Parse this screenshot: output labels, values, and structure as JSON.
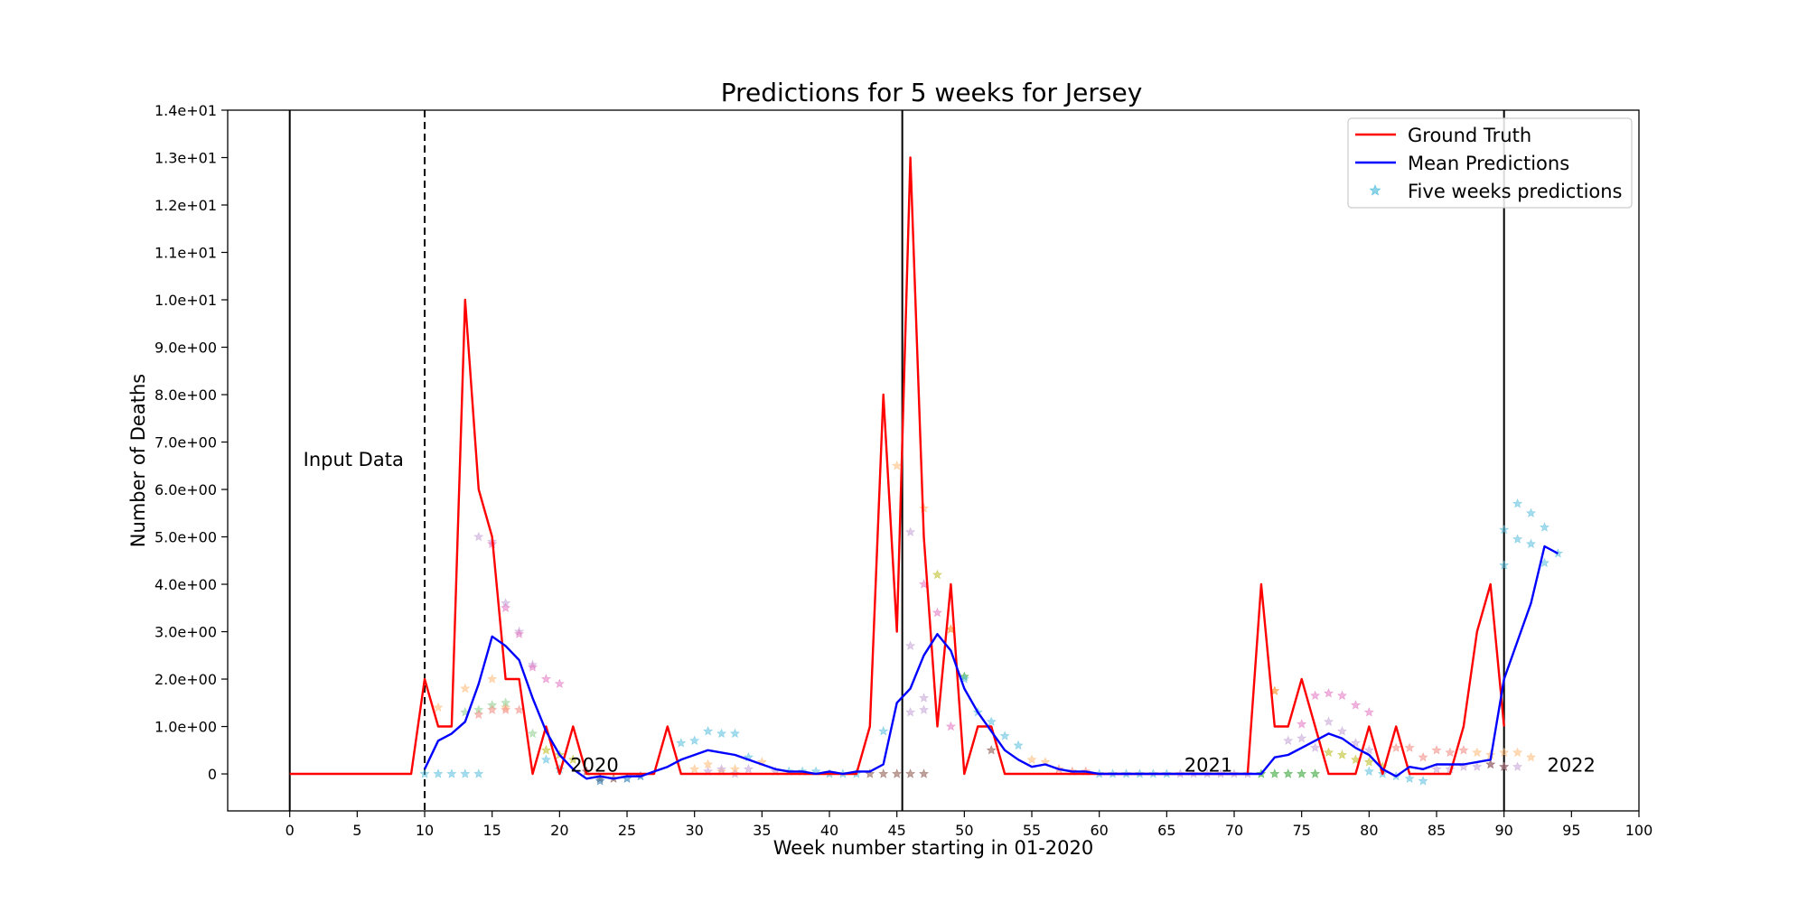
{
  "chart_data": {
    "type": "line",
    "title": "Predictions for 5 weeks for Jersey",
    "xlabel": "Week number starting in 01-2020",
    "ylabel": "Number of Deaths",
    "xlim": [
      -4.6,
      100
    ],
    "ylim": [
      -0.78,
      14
    ],
    "x_ticks": [
      0,
      5,
      10,
      15,
      20,
      25,
      30,
      35,
      40,
      45,
      50,
      55,
      60,
      65,
      70,
      75,
      80,
      85,
      90,
      95,
      100
    ],
    "y_ticks": [
      0,
      1,
      2,
      3,
      4,
      5,
      6,
      7,
      8,
      9,
      10,
      11,
      12,
      13,
      14
    ],
    "y_tick_labels": [
      "0",
      "1.0e+00",
      "2.0e+00",
      "3.0e+00",
      "4.0e+00",
      "5.0e+00",
      "6.0e+00",
      "7.0e+00",
      "8.0e+00",
      "9.0e+00",
      "1.0e+01",
      "1.1e+01",
      "1.2e+01",
      "1.3e+01",
      "1.4e+01"
    ],
    "grid": false,
    "legend_position": "top-right",
    "legend": [
      {
        "label": "Ground Truth",
        "color": "#ff0000",
        "kind": "line"
      },
      {
        "label": "Mean Predictions",
        "color": "#0000ff",
        "kind": "line"
      },
      {
        "label": "Five weeks predictions",
        "color": "#5bc0de",
        "kind": "star"
      }
    ],
    "vertical_lines": [
      {
        "x": 0,
        "style": "solid"
      },
      {
        "x": 10,
        "style": "dashed"
      },
      {
        "x": 45.4,
        "style": "solid"
      },
      {
        "x": 90,
        "style": "solid"
      }
    ],
    "annotations": [
      {
        "text": "Input Data",
        "x": 1,
        "y": 6.5
      },
      {
        "text": "2020",
        "x": 20.8,
        "y": 0.05
      },
      {
        "text": "2021",
        "x": 66.3,
        "y": 0.05
      },
      {
        "text": "2022",
        "x": 93.2,
        "y": 0.05
      }
    ],
    "series": [
      {
        "name": "Ground Truth",
        "color": "#ff0000",
        "x": [
          0,
          1,
          2,
          3,
          4,
          5,
          6,
          7,
          8,
          9,
          10,
          11,
          12,
          13,
          14,
          15,
          16,
          17,
          18,
          19,
          20,
          21,
          22,
          23,
          24,
          25,
          26,
          27,
          28,
          29,
          30,
          31,
          32,
          33,
          34,
          35,
          36,
          37,
          38,
          39,
          40,
          41,
          42,
          43,
          44,
          45,
          46,
          47,
          48,
          49,
          50,
          51,
          52,
          53,
          54,
          55,
          56,
          57,
          58,
          59,
          60,
          61,
          62,
          63,
          64,
          65,
          66,
          67,
          68,
          69,
          70,
          71,
          72,
          73,
          74,
          75,
          76,
          77,
          78,
          79,
          80,
          81,
          82,
          83,
          84,
          85,
          86,
          87,
          88,
          89,
          90
        ],
        "y": [
          0,
          0,
          0,
          0,
          0,
          0,
          0,
          0,
          0,
          0,
          2,
          1,
          1,
          10,
          6,
          5,
          2,
          2,
          0,
          1,
          0,
          1,
          0,
          0,
          0,
          0,
          0,
          0,
          1,
          0,
          0,
          0,
          0,
          0,
          0,
          0,
          0,
          0,
          0,
          0,
          0,
          0,
          0,
          1,
          8,
          3,
          13,
          5,
          1,
          4,
          0,
          1,
          1,
          0,
          0,
          0,
          0,
          0,
          0,
          0,
          0,
          0,
          0,
          0,
          0,
          0,
          0,
          0,
          0,
          0,
          0,
          0,
          4,
          1,
          1,
          2,
          1,
          0,
          0,
          0,
          1,
          0,
          1,
          0,
          0,
          0,
          0,
          1,
          3,
          4,
          1
        ]
      },
      {
        "name": "Mean Predictions",
        "color": "#0000ff",
        "x": [
          10,
          11,
          12,
          13,
          14,
          15,
          16,
          17,
          18,
          19,
          20,
          21,
          22,
          23,
          24,
          25,
          26,
          27,
          28,
          29,
          30,
          31,
          32,
          33,
          34,
          35,
          36,
          37,
          38,
          39,
          40,
          41,
          42,
          43,
          44,
          45,
          46,
          47,
          48,
          49,
          50,
          51,
          52,
          53,
          54,
          55,
          56,
          57,
          58,
          59,
          60,
          61,
          62,
          63,
          64,
          65,
          66,
          67,
          68,
          69,
          70,
          71,
          72,
          73,
          74,
          75,
          76,
          77,
          78,
          79,
          80,
          81,
          82,
          83,
          84,
          85,
          86,
          87,
          88,
          89,
          90,
          91,
          92,
          93,
          94
        ],
        "y": [
          0.1,
          0.7,
          0.85,
          1.1,
          1.9,
          2.9,
          2.7,
          2.4,
          1.6,
          0.9,
          0.4,
          0.1,
          -0.1,
          -0.05,
          -0.1,
          -0.05,
          -0.05,
          0.05,
          0.15,
          0.3,
          0.4,
          0.5,
          0.45,
          0.4,
          0.3,
          0.2,
          0.1,
          0.05,
          0.05,
          0.0,
          0.05,
          0.0,
          0.05,
          0.05,
          0.2,
          1.5,
          1.8,
          2.5,
          2.95,
          2.6,
          1.8,
          1.3,
          0.9,
          0.5,
          0.3,
          0.15,
          0.2,
          0.1,
          0.05,
          0.05,
          0.0,
          0.0,
          0.0,
          0.0,
          0.0,
          0.0,
          0.0,
          0.0,
          0.0,
          0.0,
          0.0,
          0.0,
          0.0,
          0.35,
          0.4,
          0.55,
          0.7,
          0.85,
          0.75,
          0.55,
          0.4,
          0.1,
          -0.05,
          0.15,
          0.1,
          0.2,
          0.2,
          0.2,
          0.25,
          0.3,
          2.0,
          2.8,
          3.6,
          4.8,
          4.65
        ]
      }
    ],
    "scatter_points": [
      {
        "x": 10,
        "y": 0,
        "c": "#5bc0de"
      },
      {
        "x": 11,
        "y": 0,
        "c": "#5bc0de"
      },
      {
        "x": 12,
        "y": 0,
        "c": "#5bc0de"
      },
      {
        "x": 13,
        "y": 0,
        "c": "#5bc0de"
      },
      {
        "x": 14,
        "y": 0,
        "c": "#5bc0de"
      },
      {
        "x": 11,
        "y": 1.4,
        "c": "#ffbb78"
      },
      {
        "x": 13,
        "y": 1.8,
        "c": "#ffbb78"
      },
      {
        "x": 15,
        "y": 2.0,
        "c": "#ffbb78"
      },
      {
        "x": 16,
        "y": 1.4,
        "c": "#ffbb78"
      },
      {
        "x": 13,
        "y": 1.3,
        "c": "#8fce8f"
      },
      {
        "x": 14,
        "y": 1.35,
        "c": "#8fce8f"
      },
      {
        "x": 15,
        "y": 1.45,
        "c": "#8fce8f"
      },
      {
        "x": 16,
        "y": 1.5,
        "c": "#8fce8f"
      },
      {
        "x": 18,
        "y": 0.85,
        "c": "#8fce8f"
      },
      {
        "x": 14,
        "y": 1.25,
        "c": "#f28b82"
      },
      {
        "x": 15,
        "y": 1.35,
        "c": "#f28b82"
      },
      {
        "x": 16,
        "y": 1.35,
        "c": "#f28b82"
      },
      {
        "x": 17,
        "y": 1.35,
        "c": "#f28b82"
      },
      {
        "x": 14,
        "y": 5.0,
        "c": "#c5a3d6"
      },
      {
        "x": 15,
        "y": 4.9,
        "c": "#c5a3d6"
      },
      {
        "x": 16,
        "y": 3.6,
        "c": "#c5a3d6"
      },
      {
        "x": 17,
        "y": 3.0,
        "c": "#c5a3d6"
      },
      {
        "x": 18,
        "y": 2.3,
        "c": "#c5a3d6"
      },
      {
        "x": 15,
        "y": 4.85,
        "c": "#e377c2"
      },
      {
        "x": 16,
        "y": 3.5,
        "c": "#e377c2"
      },
      {
        "x": 17,
        "y": 2.95,
        "c": "#e377c2"
      },
      {
        "x": 18,
        "y": 2.25,
        "c": "#e377c2"
      },
      {
        "x": 19,
        "y": 2.0,
        "c": "#e377c2"
      },
      {
        "x": 20,
        "y": 1.9,
        "c": "#e377c2"
      },
      {
        "x": 19,
        "y": 0.5,
        "c": "#bcbd22"
      },
      {
        "x": 20,
        "y": 0.4,
        "c": "#bcbd22"
      },
      {
        "x": 21,
        "y": 0.3,
        "c": "#bcbd22"
      },
      {
        "x": 19,
        "y": 0.3,
        "c": "#5bc0de"
      },
      {
        "x": 20,
        "y": 0.1,
        "c": "#5bc0de"
      },
      {
        "x": 22,
        "y": 0.05,
        "c": "#8c564b"
      },
      {
        "x": 23,
        "y": -0.1,
        "c": "#8c564b"
      },
      {
        "x": 24,
        "y": -0.1,
        "c": "#8c564b"
      },
      {
        "x": 23,
        "y": -0.15,
        "c": "#1f77b4"
      },
      {
        "x": 25,
        "y": -0.1,
        "c": "#1f77b4"
      },
      {
        "x": 26,
        "y": -0.05,
        "c": "#1f77b4"
      },
      {
        "x": 29,
        "y": 0.65,
        "c": "#5bc0de"
      },
      {
        "x": 30,
        "y": 0.7,
        "c": "#5bc0de"
      },
      {
        "x": 31,
        "y": 0.9,
        "c": "#5bc0de"
      },
      {
        "x": 32,
        "y": 0.85,
        "c": "#5bc0de"
      },
      {
        "x": 33,
        "y": 0.85,
        "c": "#5bc0de"
      },
      {
        "x": 34,
        "y": 0.35,
        "c": "#5bc0de"
      },
      {
        "x": 30,
        "y": 0.1,
        "c": "#ffbb78"
      },
      {
        "x": 31,
        "y": 0.2,
        "c": "#ffbb78"
      },
      {
        "x": 32,
        "y": 0.05,
        "c": "#ffbb78"
      },
      {
        "x": 33,
        "y": 0.1,
        "c": "#ffbb78"
      },
      {
        "x": 35,
        "y": 0.25,
        "c": "#ffbb78"
      },
      {
        "x": 31,
        "y": 0.05,
        "c": "#c5a3d6"
      },
      {
        "x": 32,
        "y": 0.1,
        "c": "#c5a3d6"
      },
      {
        "x": 33,
        "y": 0.0,
        "c": "#c5a3d6"
      },
      {
        "x": 34,
        "y": 0.1,
        "c": "#c5a3d6"
      },
      {
        "x": 36,
        "y": 0.05,
        "c": "#c5a3d6"
      },
      {
        "x": 37,
        "y": 0.05,
        "c": "#5bc0de"
      },
      {
        "x": 38,
        "y": 0.05,
        "c": "#5bc0de"
      },
      {
        "x": 39,
        "y": 0.05,
        "c": "#5bc0de"
      },
      {
        "x": 40,
        "y": 0.0,
        "c": "#5bc0de"
      },
      {
        "x": 41,
        "y": 0.0,
        "c": "#5bc0de"
      },
      {
        "x": 42,
        "y": 0.0,
        "c": "#5bc0de"
      },
      {
        "x": 43,
        "y": 0.0,
        "c": "#8c564b"
      },
      {
        "x": 44,
        "y": 0.0,
        "c": "#8c564b"
      },
      {
        "x": 45,
        "y": 0.0,
        "c": "#8c564b"
      },
      {
        "x": 46,
        "y": 0.0,
        "c": "#8c564b"
      },
      {
        "x": 47,
        "y": 0.0,
        "c": "#8c564b"
      },
      {
        "x": 44,
        "y": 0.9,
        "c": "#5bc0de"
      },
      {
        "x": 45,
        "y": 6.5,
        "c": "#ffbb78"
      },
      {
        "x": 46,
        "y": 5.1,
        "c": "#c5a3d6"
      },
      {
        "x": 47,
        "y": 5.6,
        "c": "#ffbb78"
      },
      {
        "x": 47,
        "y": 4.0,
        "c": "#e377c2"
      },
      {
        "x": 46,
        "y": 2.7,
        "c": "#c5a3d6"
      },
      {
        "x": 47,
        "y": 1.6,
        "c": "#c5a3d6"
      },
      {
        "x": 46,
        "y": 1.3,
        "c": "#c5a3d6"
      },
      {
        "x": 47,
        "y": 1.35,
        "c": "#c5a3d6"
      },
      {
        "x": 48,
        "y": 4.2,
        "c": "#bcbd22"
      },
      {
        "x": 48,
        "y": 3.4,
        "c": "#e377c2"
      },
      {
        "x": 49,
        "y": 3.05,
        "c": "#ff7f0e"
      },
      {
        "x": 49,
        "y": 1.0,
        "c": "#e377c2"
      },
      {
        "x": 50,
        "y": 2.05,
        "c": "#2ca02c"
      },
      {
        "x": 50,
        "y": 2.0,
        "c": "#5bc0de"
      },
      {
        "x": 51,
        "y": 1.3,
        "c": "#5bc0de"
      },
      {
        "x": 52,
        "y": 1.1,
        "c": "#5bc0de"
      },
      {
        "x": 53,
        "y": 0.8,
        "c": "#5bc0de"
      },
      {
        "x": 54,
        "y": 0.6,
        "c": "#5bc0de"
      },
      {
        "x": 52,
        "y": 0.5,
        "c": "#8c564b"
      },
      {
        "x": 55,
        "y": 0.3,
        "c": "#ffbb78"
      },
      {
        "x": 56,
        "y": 0.25,
        "c": "#ffbb78"
      },
      {
        "x": 57,
        "y": 0.1,
        "c": "#f28b82"
      },
      {
        "x": 58,
        "y": 0.05,
        "c": "#f28b82"
      },
      {
        "x": 59,
        "y": 0.05,
        "c": "#f28b82"
      },
      {
        "x": 60,
        "y": 0.0,
        "c": "#5bc0de"
      },
      {
        "x": 61,
        "y": 0.0,
        "c": "#5bc0de"
      },
      {
        "x": 62,
        "y": 0.0,
        "c": "#5bc0de"
      },
      {
        "x": 63,
        "y": 0.0,
        "c": "#5bc0de"
      },
      {
        "x": 64,
        "y": 0.0,
        "c": "#5bc0de"
      },
      {
        "x": 65,
        "y": 0.0,
        "c": "#5bc0de"
      },
      {
        "x": 66,
        "y": 0.0,
        "c": "#c5a3d6"
      },
      {
        "x": 67,
        "y": 0.0,
        "c": "#c5a3d6"
      },
      {
        "x": 68,
        "y": 0.0,
        "c": "#c5a3d6"
      },
      {
        "x": 69,
        "y": 0.0,
        "c": "#c5a3d6"
      },
      {
        "x": 70,
        "y": 0.0,
        "c": "#c5a3d6"
      },
      {
        "x": 71,
        "y": 0.0,
        "c": "#c5a3d6"
      },
      {
        "x": 72,
        "y": 0.0,
        "c": "#2ca02c"
      },
      {
        "x": 73,
        "y": 0.0,
        "c": "#2ca02c"
      },
      {
        "x": 74,
        "y": 0.0,
        "c": "#2ca02c"
      },
      {
        "x": 75,
        "y": 0.0,
        "c": "#2ca02c"
      },
      {
        "x": 76,
        "y": 0.0,
        "c": "#2ca02c"
      },
      {
        "x": 73,
        "y": 1.75,
        "c": "#ff7f0e"
      },
      {
        "x": 74,
        "y": 0.7,
        "c": "#c5a3d6"
      },
      {
        "x": 75,
        "y": 1.05,
        "c": "#e377c2"
      },
      {
        "x": 76,
        "y": 1.65,
        "c": "#e377c2"
      },
      {
        "x": 77,
        "y": 1.7,
        "c": "#e377c2"
      },
      {
        "x": 78,
        "y": 1.65,
        "c": "#e377c2"
      },
      {
        "x": 79,
        "y": 1.45,
        "c": "#e377c2"
      },
      {
        "x": 80,
        "y": 1.3,
        "c": "#e377c2"
      },
      {
        "x": 75,
        "y": 0.75,
        "c": "#c5a3d6"
      },
      {
        "x": 76,
        "y": 0.55,
        "c": "#c5a3d6"
      },
      {
        "x": 77,
        "y": 1.1,
        "c": "#c5a3d6"
      },
      {
        "x": 78,
        "y": 0.9,
        "c": "#c5a3d6"
      },
      {
        "x": 79,
        "y": 0.65,
        "c": "#c5a3d6"
      },
      {
        "x": 80,
        "y": 0.5,
        "c": "#c5a3d6"
      },
      {
        "x": 77,
        "y": 0.45,
        "c": "#bcbd22"
      },
      {
        "x": 78,
        "y": 0.4,
        "c": "#bcbd22"
      },
      {
        "x": 79,
        "y": 0.3,
        "c": "#bcbd22"
      },
      {
        "x": 80,
        "y": 0.25,
        "c": "#bcbd22"
      },
      {
        "x": 81,
        "y": 0.15,
        "c": "#bcbd22"
      },
      {
        "x": 80,
        "y": 0.05,
        "c": "#5bc0de"
      },
      {
        "x": 81,
        "y": 0.0,
        "c": "#5bc0de"
      },
      {
        "x": 82,
        "y": -0.05,
        "c": "#5bc0de"
      },
      {
        "x": 83,
        "y": -0.1,
        "c": "#5bc0de"
      },
      {
        "x": 84,
        "y": -0.15,
        "c": "#5bc0de"
      },
      {
        "x": 82,
        "y": 0.55,
        "c": "#f28b82"
      },
      {
        "x": 83,
        "y": 0.55,
        "c": "#f28b82"
      },
      {
        "x": 84,
        "y": 0.35,
        "c": "#f28b82"
      },
      {
        "x": 85,
        "y": 0.5,
        "c": "#f28b82"
      },
      {
        "x": 86,
        "y": 0.45,
        "c": "#f28b82"
      },
      {
        "x": 87,
        "y": 0.5,
        "c": "#f28b82"
      },
      {
        "x": 85,
        "y": 0.1,
        "c": "#c5a3d6"
      },
      {
        "x": 86,
        "y": 0.1,
        "c": "#c5a3d6"
      },
      {
        "x": 87,
        "y": 0.15,
        "c": "#c5a3d6"
      },
      {
        "x": 88,
        "y": 0.15,
        "c": "#c5a3d6"
      },
      {
        "x": 89,
        "y": 0.2,
        "c": "#c5a3d6"
      },
      {
        "x": 90,
        "y": 0.15,
        "c": "#c5a3d6"
      },
      {
        "x": 91,
        "y": 0.15,
        "c": "#c5a3d6"
      },
      {
        "x": 88,
        "y": 0.45,
        "c": "#ffbb78"
      },
      {
        "x": 89,
        "y": 0.4,
        "c": "#ffbb78"
      },
      {
        "x": 90,
        "y": 0.45,
        "c": "#ffbb78"
      },
      {
        "x": 91,
        "y": 0.45,
        "c": "#ffbb78"
      },
      {
        "x": 92,
        "y": 0.35,
        "c": "#ffbb78"
      },
      {
        "x": 89,
        "y": 0.2,
        "c": "#8c564b"
      },
      {
        "x": 90,
        "y": 0.15,
        "c": "#8c564b"
      },
      {
        "x": 90,
        "y": 5.15,
        "c": "#5bc0de"
      },
      {
        "x": 91,
        "y": 5.7,
        "c": "#5bc0de"
      },
      {
        "x": 92,
        "y": 5.5,
        "c": "#5bc0de"
      },
      {
        "x": 93,
        "y": 5.2,
        "c": "#5bc0de"
      },
      {
        "x": 90,
        "y": 4.4,
        "c": "#5bc0de"
      },
      {
        "x": 91,
        "y": 4.95,
        "c": "#5bc0de"
      },
      {
        "x": 92,
        "y": 4.85,
        "c": "#5bc0de"
      },
      {
        "x": 93,
        "y": 4.45,
        "c": "#5bc0de"
      },
      {
        "x": 94,
        "y": 4.65,
        "c": "#5bc0de"
      }
    ]
  }
}
